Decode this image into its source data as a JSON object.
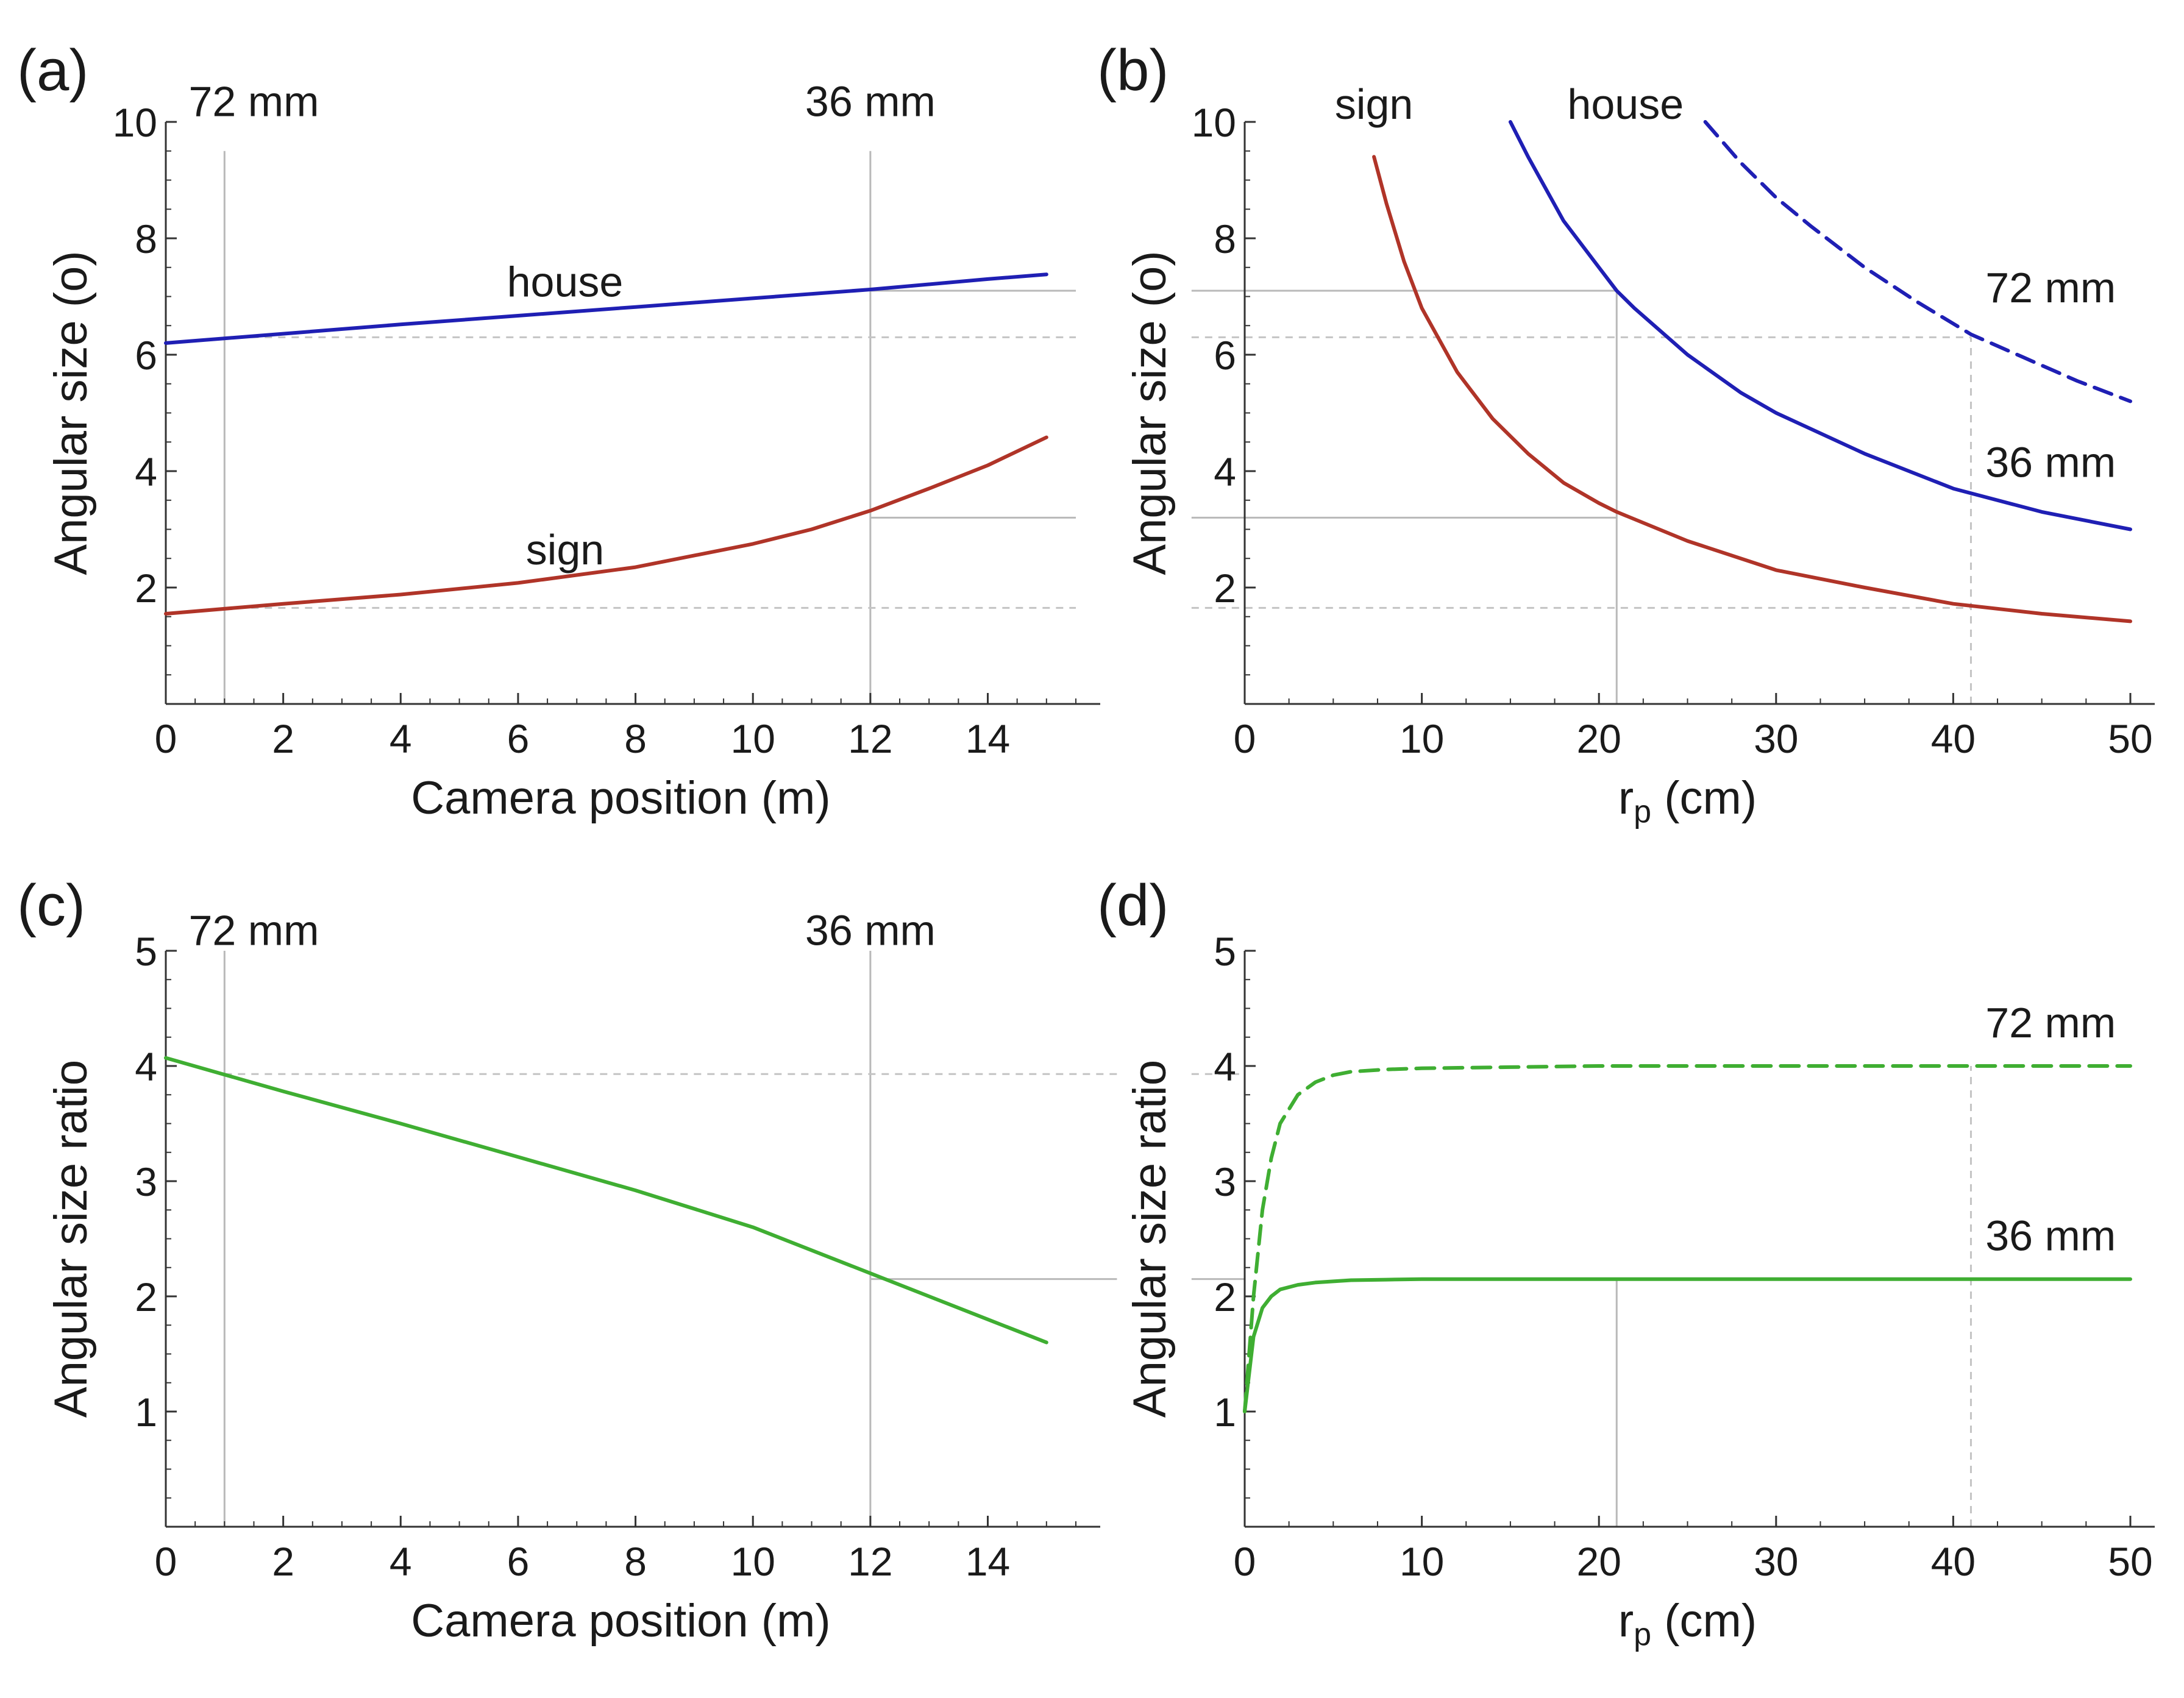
{
  "chart_data": [
    {
      "id": "a",
      "type": "line",
      "panel_label": "(a)",
      "xlabel": "Camera position (m)",
      "ylabel": "Angular size (o)",
      "xlim": [
        0,
        15.5
      ],
      "ylim": [
        0,
        10
      ],
      "xticks": [
        0,
        2,
        4,
        6,
        8,
        10,
        12,
        14
      ],
      "xtick_labels": [
        "0",
        "2",
        "4",
        "6",
        "8",
        "10",
        "12",
        "14"
      ],
      "yticks": [
        2,
        4,
        6,
        8,
        10
      ],
      "ytick_labels": [
        "2",
        "4",
        "6",
        "8",
        "10"
      ],
      "series": [
        {
          "name": "house",
          "color": "#1f1fb4",
          "dash": false,
          "x": [
            0,
            2,
            4,
            6,
            8,
            10,
            12,
            14,
            15
          ],
          "y": [
            6.2,
            6.36,
            6.52,
            6.67,
            6.82,
            6.97,
            7.12,
            7.3,
            7.38
          ]
        },
        {
          "name": "sign",
          "color": "#b03428",
          "dash": false,
          "x": [
            0,
            2,
            4,
            6,
            8,
            10,
            11,
            12,
            13,
            14,
            15
          ],
          "y": [
            1.55,
            1.72,
            1.88,
            2.08,
            2.35,
            2.75,
            3.0,
            3.32,
            3.7,
            4.1,
            4.58
          ]
        }
      ],
      "reference_lines": [
        {
          "orientation": "vertical",
          "value": 1,
          "style": "solid",
          "y_from": 0,
          "y_to": 9.5
        },
        {
          "orientation": "vertical",
          "value": 12,
          "style": "solid",
          "y_from": 0,
          "y_to": 9.5
        },
        {
          "orientation": "horizontal",
          "value": 7.1,
          "style": "solid",
          "x_from": 12,
          "x_to": 15.5
        },
        {
          "orientation": "horizontal",
          "value": 3.2,
          "style": "solid",
          "x_from": 12,
          "x_to": 15.5
        },
        {
          "orientation": "horizontal",
          "value": 6.3,
          "style": "dashed",
          "x_from": 1,
          "x_to": 15.5
        },
        {
          "orientation": "horizontal",
          "value": 1.65,
          "style": "dashed",
          "x_from": 1,
          "x_to": 15.5
        }
      ],
      "annotations": [
        {
          "text": "72 mm",
          "x": 1.5,
          "y": 10.1
        },
        {
          "text": "36 mm",
          "x": 12.0,
          "y": 10.1
        },
        {
          "text": "house",
          "x": 6.8,
          "y": 7.0
        },
        {
          "text": "sign",
          "x": 6.8,
          "y": 2.4
        }
      ]
    },
    {
      "id": "b",
      "type": "line",
      "panel_label": "(b)",
      "xlabel": "r",
      "xlabel_sub": "p",
      "xlabel_suffix": " (cm)",
      "ylabel": "Angular size (o)",
      "xlim": [
        0,
        50
      ],
      "ylim": [
        0,
        10
      ],
      "xticks": [
        0,
        10,
        20,
        30,
        40,
        50
      ],
      "xtick_labels": [
        "0",
        "10",
        "20",
        "30",
        "40",
        "50"
      ],
      "yticks": [
        2,
        4,
        6,
        8,
        10
      ],
      "ytick_labels": [
        "2",
        "4",
        "6",
        "8",
        "10"
      ],
      "series": [
        {
          "name": "sign",
          "color": "#b03428",
          "dash": false,
          "x": [
            7.3,
            8,
            9,
            10,
            12,
            14,
            16,
            18,
            20,
            21,
            25,
            30,
            35,
            40,
            45,
            50
          ],
          "y": [
            9.4,
            8.6,
            7.6,
            6.8,
            5.7,
            4.9,
            4.3,
            3.8,
            3.45,
            3.3,
            2.8,
            2.3,
            2.0,
            1.72,
            1.55,
            1.42
          ]
        },
        {
          "name": "house 36 mm",
          "color": "#1f1fb4",
          "dash": false,
          "x": [
            15,
            16,
            18,
            20,
            21,
            22,
            25,
            28,
            30,
            35,
            40,
            45,
            50
          ],
          "y": [
            10.0,
            9.4,
            8.3,
            7.5,
            7.1,
            6.8,
            6.0,
            5.35,
            5.0,
            4.3,
            3.7,
            3.3,
            3.0
          ]
        },
        {
          "name": "house 72 mm",
          "color": "#1f1fb4",
          "dash": true,
          "x": [
            26,
            28,
            30,
            32,
            35,
            38,
            41,
            44,
            47,
            50
          ],
          "y": [
            10.0,
            9.3,
            8.7,
            8.2,
            7.5,
            6.9,
            6.35,
            5.95,
            5.55,
            5.2
          ]
        }
      ],
      "reference_lines": [
        {
          "orientation": "horizontal",
          "value": 7.1,
          "style": "solid",
          "x_from": -3,
          "x_to": 21
        },
        {
          "orientation": "horizontal",
          "value": 3.2,
          "style": "solid",
          "x_from": -3,
          "x_to": 21
        },
        {
          "orientation": "vertical",
          "value": 21,
          "style": "solid",
          "y_from": 0,
          "y_to": 7.1
        },
        {
          "orientation": "horizontal",
          "value": 6.3,
          "style": "dashed",
          "x_from": -3,
          "x_to": 41
        },
        {
          "orientation": "horizontal",
          "value": 1.65,
          "style": "dashed",
          "x_from": -3,
          "x_to": 41
        },
        {
          "orientation": "vertical",
          "value": 41,
          "style": "dashed",
          "y_from": 0,
          "y_to": 6.3
        }
      ],
      "annotations": [
        {
          "text": "sign",
          "x": 7.3,
          "y": 10.05
        },
        {
          "text": "house",
          "x": 21.5,
          "y": 10.05
        },
        {
          "text": "72 mm",
          "x": 45.5,
          "y": 6.9
        },
        {
          "text": "36 mm",
          "x": 45.5,
          "y": 3.9
        }
      ]
    },
    {
      "id": "c",
      "type": "line",
      "panel_label": "(c)",
      "xlabel": "Camera position (m)",
      "ylabel": "Angular size ratio",
      "xlim": [
        0,
        15.5
      ],
      "ylim": [
        0,
        5
      ],
      "xticks": [
        0,
        2,
        4,
        6,
        8,
        10,
        12,
        14
      ],
      "xtick_labels": [
        "0",
        "2",
        "4",
        "6",
        "8",
        "10",
        "12",
        "14"
      ],
      "yticks": [
        1,
        2,
        3,
        4,
        5
      ],
      "ytick_labels": [
        "1",
        "2",
        "3",
        "4",
        "5"
      ],
      "series": [
        {
          "name": "ratio",
          "color": "#3fae32",
          "dash": false,
          "x": [
            0,
            2,
            4,
            6,
            8,
            10,
            12,
            14,
            15
          ],
          "y": [
            4.07,
            3.78,
            3.5,
            3.21,
            2.92,
            2.6,
            2.2,
            1.8,
            1.6
          ]
        }
      ],
      "reference_lines": [
        {
          "orientation": "vertical",
          "value": 1,
          "style": "solid",
          "y_from": 0,
          "y_to": 5
        },
        {
          "orientation": "vertical",
          "value": 12,
          "style": "solid",
          "y_from": 0,
          "y_to": 5
        },
        {
          "orientation": "horizontal",
          "value": 2.15,
          "style": "solid",
          "x_from": 12,
          "x_to": 16.2
        },
        {
          "orientation": "horizontal",
          "value": 3.93,
          "style": "dashed",
          "x_from": 1,
          "x_to": 16.2
        }
      ],
      "annotations": [
        {
          "text": "72 mm",
          "x": 1.5,
          "y": 5.05
        },
        {
          "text": "36 mm",
          "x": 12.0,
          "y": 5.05
        }
      ]
    },
    {
      "id": "d",
      "type": "line",
      "panel_label": "(d)",
      "xlabel": "r",
      "xlabel_sub": "p",
      "xlabel_suffix": " (cm)",
      "ylabel": "Angular size ratio",
      "xlim": [
        0,
        50
      ],
      "ylim": [
        0,
        5
      ],
      "xticks": [
        0,
        10,
        20,
        30,
        40,
        50
      ],
      "xtick_labels": [
        "0",
        "10",
        "20",
        "30",
        "40",
        "50"
      ],
      "yticks": [
        1,
        2,
        3,
        4,
        5
      ],
      "ytick_labels": [
        "1",
        "2",
        "3",
        "4",
        "5"
      ],
      "series": [
        {
          "name": "72 mm",
          "color": "#3fae32",
          "dash": true,
          "x": [
            0,
            0.5,
            1,
            1.5,
            2,
            3,
            4,
            5,
            6,
            8,
            10,
            15,
            20,
            30,
            40,
            50
          ],
          "y": [
            1.0,
            2.0,
            2.75,
            3.2,
            3.5,
            3.75,
            3.86,
            3.92,
            3.95,
            3.97,
            3.98,
            3.99,
            4.0,
            4.0,
            4.0,
            4.0
          ]
        },
        {
          "name": "36 mm",
          "color": "#3fae32",
          "dash": false,
          "x": [
            0,
            0.5,
            1,
            1.5,
            2,
            3,
            4,
            5,
            6,
            8,
            10,
            20,
            30,
            40,
            50
          ],
          "y": [
            1.0,
            1.65,
            1.9,
            2.0,
            2.06,
            2.1,
            2.12,
            2.13,
            2.14,
            2.145,
            2.15,
            2.15,
            2.15,
            2.15,
            2.15
          ]
        }
      ],
      "reference_lines": [
        {
          "orientation": "vertical",
          "value": 21,
          "style": "solid",
          "y_from": 0,
          "y_to": 2.15
        },
        {
          "orientation": "vertical",
          "value": 41,
          "style": "dashed",
          "y_from": 0,
          "y_to": 4.0
        },
        {
          "orientation": "horizontal",
          "value": 3.93,
          "style": "dashed",
          "x_from": -3,
          "x_to": 0
        },
        {
          "orientation": "horizontal",
          "value": 2.15,
          "style": "solid",
          "x_from": -3,
          "x_to": 0
        }
      ],
      "annotations": [
        {
          "text": "72 mm",
          "x": 45.5,
          "y": 4.25
        },
        {
          "text": "36 mm",
          "x": 45.5,
          "y": 2.4
        }
      ]
    }
  ]
}
